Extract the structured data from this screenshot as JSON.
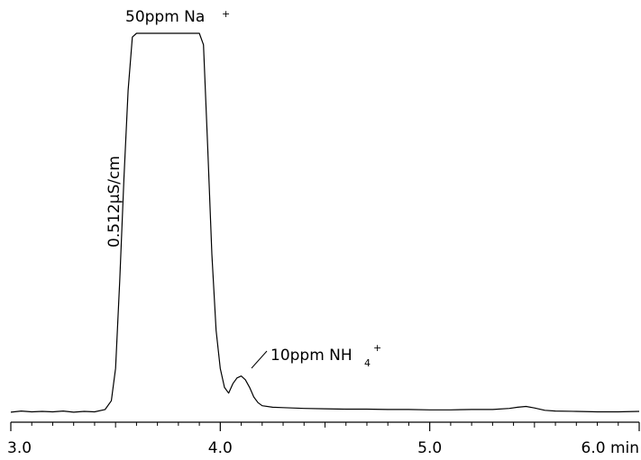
{
  "chart_data": {
    "type": "line",
    "title": "",
    "xlabel": "",
    "ylabel": "",
    "x_unit": "min",
    "xlim": [
      3.0,
      6.0
    ],
    "ylim": [
      0,
      1.0
    ],
    "ticks": [
      {
        "value": 3.0,
        "label": "3.0"
      },
      {
        "value": 4.0,
        "label": "4.0"
      },
      {
        "value": 5.0,
        "label": "5.0"
      },
      {
        "value": 6.0,
        "label": "6.0 min"
      }
    ],
    "scale_bar": "0.512µS/cm",
    "series": [
      {
        "x": [
          3.0,
          3.05,
          3.1,
          3.15,
          3.2,
          3.25,
          3.3,
          3.35,
          3.4,
          3.45,
          3.48,
          3.5,
          3.52,
          3.54,
          3.56,
          3.58,
          3.6,
          3.64,
          3.7,
          3.8,
          3.9,
          3.92,
          3.94,
          3.96,
          3.98,
          4.0,
          4.02,
          4.04,
          4.06,
          4.08,
          4.1,
          4.12,
          4.14,
          4.16,
          4.18,
          4.2,
          4.25,
          4.3,
          4.4,
          4.5,
          4.6,
          4.7,
          4.8,
          4.9,
          5.0,
          5.1,
          5.2,
          5.3,
          5.38,
          5.42,
          5.46,
          5.5,
          5.55,
          5.6,
          5.7,
          5.8,
          5.9,
          6.0
        ],
        "y": [
          0.005,
          0.008,
          0.006,
          0.007,
          0.006,
          0.008,
          0.005,
          0.007,
          0.006,
          0.012,
          0.035,
          0.12,
          0.35,
          0.62,
          0.85,
          0.99,
          1.0,
          1.0,
          1.0,
          1.0,
          1.0,
          0.97,
          0.7,
          0.42,
          0.22,
          0.12,
          0.07,
          0.055,
          0.08,
          0.095,
          0.1,
          0.09,
          0.07,
          0.045,
          0.03,
          0.022,
          0.018,
          0.017,
          0.015,
          0.014,
          0.013,
          0.013,
          0.012,
          0.012,
          0.011,
          0.011,
          0.012,
          0.012,
          0.015,
          0.018,
          0.02,
          0.016,
          0.01,
          0.008,
          0.007,
          0.006,
          0.006,
          0.007
        ]
      }
    ],
    "annotations": [
      {
        "text": "50ppm Na",
        "superscript": "+"
      },
      {
        "text": "10ppm NH",
        "subscript": "4",
        "superscript": "+"
      }
    ]
  }
}
